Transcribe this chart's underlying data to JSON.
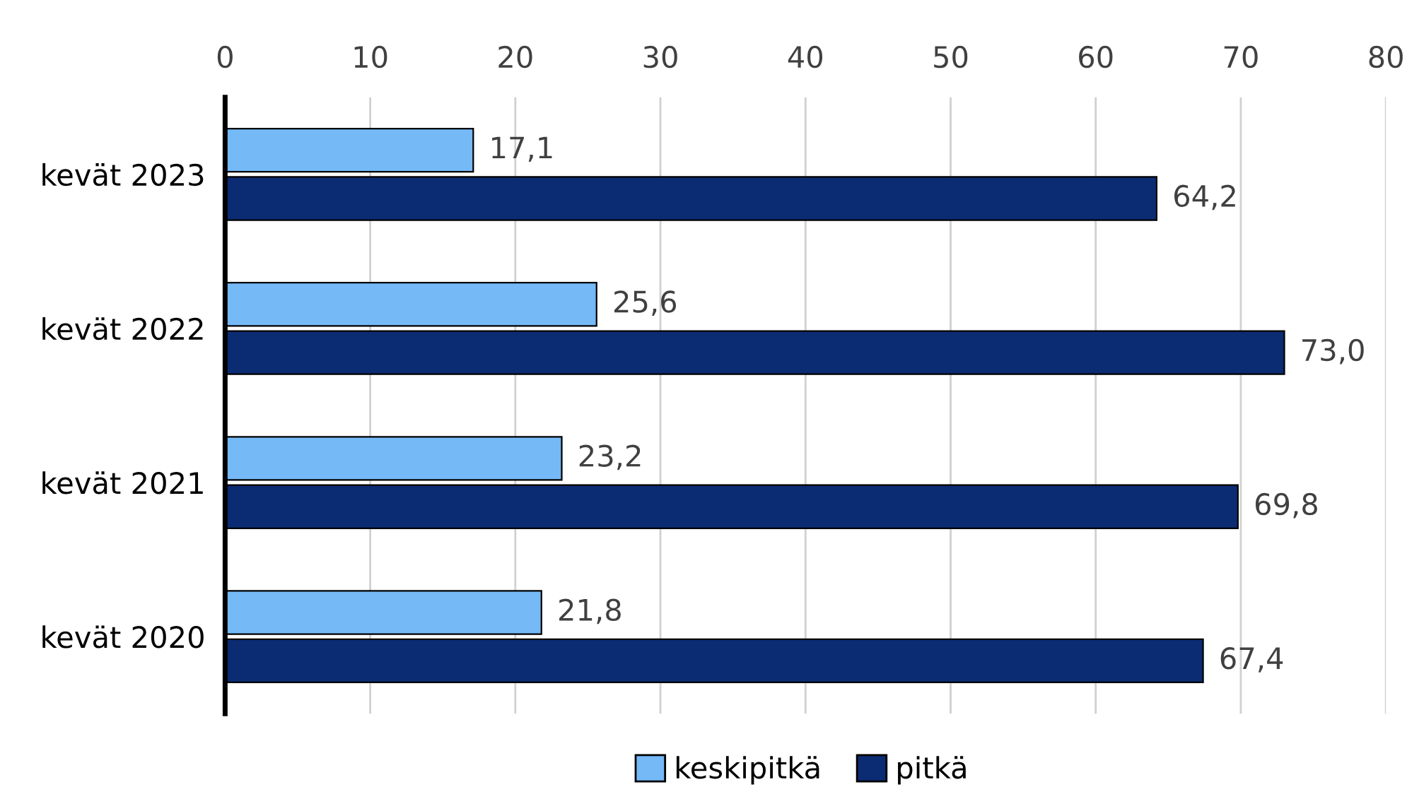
{
  "chart_data": {
    "type": "bar",
    "orientation": "horizontal",
    "categories": [
      "kevät 2023",
      "kevät 2022",
      "kevät 2021",
      "kevät 2020"
    ],
    "series": [
      {
        "name": "keskipitkä",
        "color": "#75b9f7",
        "values": [
          17.1,
          25.6,
          23.2,
          21.8
        ],
        "value_labels": [
          "17,1",
          "25,6",
          "23,2",
          "21,8"
        ]
      },
      {
        "name": "pitkä",
        "color": "#0b2c73",
        "values": [
          64.2,
          73.0,
          69.8,
          67.4
        ],
        "value_labels": [
          "64,2",
          "73,0",
          "69,8",
          "67,4"
        ]
      }
    ],
    "xlim": [
      0,
      80
    ],
    "xticks": [
      0,
      10,
      20,
      30,
      40,
      50,
      60,
      70,
      80
    ],
    "grid": "x",
    "legend": "bottom"
  }
}
